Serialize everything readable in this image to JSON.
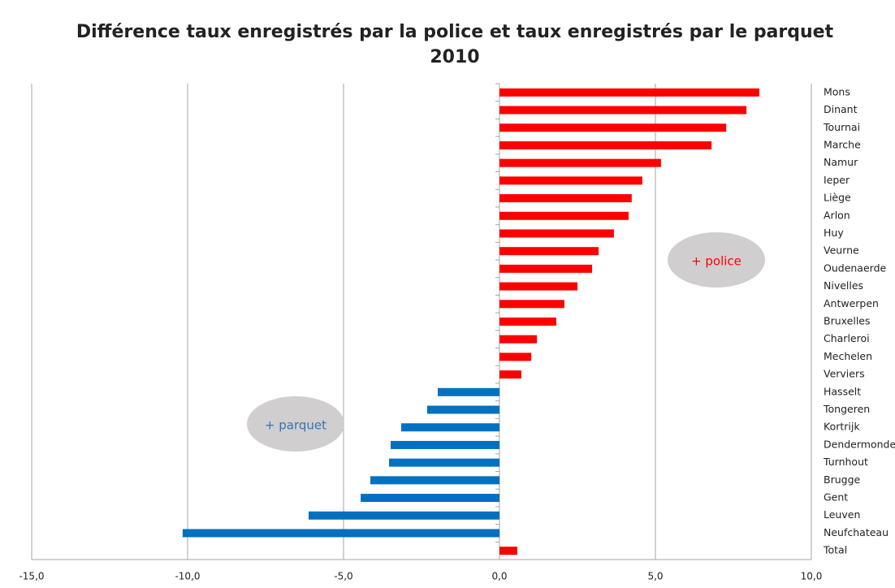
{
  "chart_data": {
    "type": "barh",
    "title": "Différence taux enregistrés par la police et taux enregistrés par le parquet",
    "subtitle": "2010",
    "categories": [
      "Mons",
      "Dinant",
      "Tournai",
      "Marche",
      "Namur",
      "Ieper",
      "Liège",
      "Arlon",
      "Huy",
      "Veurne",
      "Oudenaerde",
      "Nivelles",
      "Antwerpen",
      "Bruxelles",
      "Charleroi",
      "Mechelen",
      "Verviers",
      "Hasselt",
      "Tongeren",
      "Kortrijk",
      "Dendermonde",
      "Turnhout",
      "Brugge",
      "Gent",
      "Leuven",
      "Neufchateau",
      "Total"
    ],
    "values": [
      8.33,
      7.92,
      7.27,
      6.8,
      5.18,
      4.58,
      4.24,
      4.14,
      3.67,
      3.18,
      2.97,
      2.5,
      2.08,
      1.82,
      1.2,
      1.02,
      0.7,
      -1.98,
      -2.32,
      -3.15,
      -3.49,
      -3.54,
      -4.14,
      -4.45,
      -6.12,
      -10.16,
      0.57
    ],
    "positive_color": "#ff0000",
    "negative_color": "#0070c0",
    "xlim": [
      -15,
      10
    ],
    "xticks": [
      {
        "value": -15,
        "label": "-15,0"
      },
      {
        "value": -10,
        "label": "-10,0"
      },
      {
        "value": -5,
        "label": "-5,0"
      },
      {
        "value": 0,
        "label": "0,0"
      },
      {
        "value": 5,
        "label": "5,0"
      },
      {
        "value": 10,
        "label": "10,0"
      }
    ],
    "grid": true,
    "annotations": [
      {
        "text": "+ police",
        "color": "#ff0000"
      },
      {
        "text": "+ parquet",
        "color": "#2e75b6"
      }
    ]
  }
}
